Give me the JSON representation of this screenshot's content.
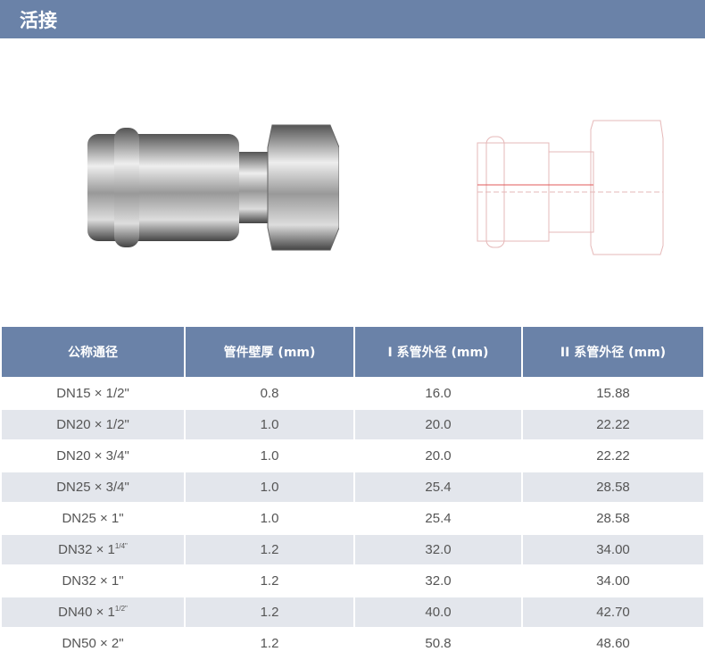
{
  "title": "活接",
  "colors": {
    "header": "#6a82a8",
    "alt_row": "#e3e6ec"
  },
  "table": {
    "headers": [
      "公称通径",
      "管件壁厚 (mm)",
      "I 系管外径 (mm)",
      "II 系管外径 (mm)"
    ],
    "rows": [
      {
        "base": "DN15 × 1/2\"",
        "sup": "",
        "c1": "0.8",
        "c2": "16.0",
        "c3": "15.88"
      },
      {
        "base": "DN20 × 1/2\"",
        "sup": "",
        "c1": "1.0",
        "c2": "20.0",
        "c3": "22.22"
      },
      {
        "base": "DN20 × 3/4\"",
        "sup": "",
        "c1": "1.0",
        "c2": "20.0",
        "c3": "22.22"
      },
      {
        "base": "DN25 × 3/4\"",
        "sup": "",
        "c1": "1.0",
        "c2": "25.4",
        "c3": "28.58"
      },
      {
        "base": "DN25 × 1\"",
        "sup": "",
        "c1": "1.0",
        "c2": "25.4",
        "c3": "28.58"
      },
      {
        "base": "DN32 × 1",
        "sup": "1/4\"",
        "c1": "1.2",
        "c2": "32.0",
        "c3": "34.00"
      },
      {
        "base": "DN32 × 1\"",
        "sup": "",
        "c1": "1.2",
        "c2": "32.0",
        "c3": "34.00"
      },
      {
        "base": "DN40 × 1",
        "sup": "1/2\"",
        "c1": "1.2",
        "c2": "40.0",
        "c3": "42.70"
      },
      {
        "base": "DN50 × 2\"",
        "sup": "",
        "c1": "1.2",
        "c2": "50.8",
        "c3": "48.60"
      }
    ]
  }
}
